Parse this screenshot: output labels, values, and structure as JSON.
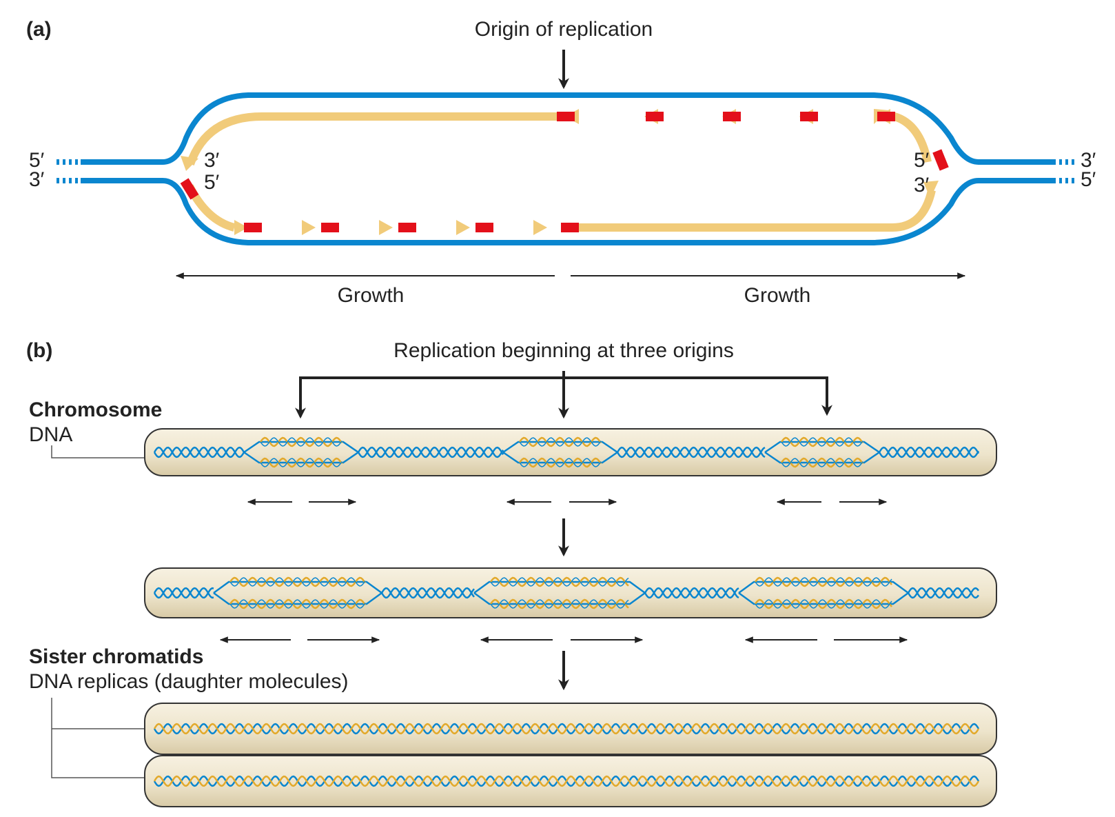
{
  "panel_a": {
    "label": "(a)",
    "origin_label": "Origin of replication",
    "growth_left": "Growth",
    "growth_right": "Growth",
    "end_left_top": "5′",
    "end_left_bottom": "3′",
    "end_right_top": "3′",
    "end_right_bottom": "5′",
    "fork_left_top": "3′",
    "fork_left_bottom": "5′",
    "fork_right_top": "5′",
    "fork_right_bottom": "3′"
  },
  "panel_b": {
    "label": "(b)",
    "title": "Replication beginning at three origins",
    "chromosome_label": "Chromosome",
    "dna_label": "DNA",
    "sister_label": "Sister chromatids",
    "replicas_label": "DNA replicas (daughter molecules)"
  },
  "colors": {
    "parental_strand": "#0a86cf",
    "new_strand": "#f1cb7a",
    "primer": "#e3101a",
    "chromosome_fill": "#ede4cb",
    "dna_gold": "#e2a92b",
    "arrow": "#222222"
  }
}
